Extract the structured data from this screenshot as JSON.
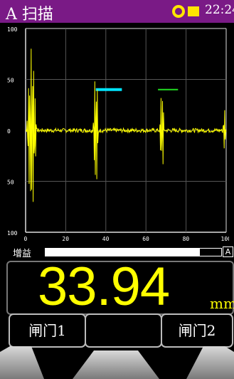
{
  "header": {
    "title": "A 扫描",
    "time": "22:24",
    "status_icons": [
      "ring-indicator",
      "battery"
    ],
    "bar_color": "#7a1a86",
    "indicator_color": "#ffe600"
  },
  "scope": {
    "y_ticks": [
      "100",
      "50",
      "0",
      "50",
      "100"
    ],
    "x_ticks": [
      "0",
      "20",
      "40",
      "60",
      "80",
      "100"
    ],
    "trace_color": "#ffff00",
    "gate_colors": [
      "#00e5ff",
      "#22dd22"
    ],
    "gates": [
      {
        "start": 35,
        "end": 48,
        "level": 40
      },
      {
        "start": 66,
        "end": 76,
        "level": 40
      }
    ],
    "echoes": [
      {
        "x": 3,
        "amp": 80,
        "span": 2.5
      },
      {
        "x": 35,
        "amp": 58,
        "span": 1.5
      },
      {
        "x": 68,
        "amp": 40,
        "span": 1.2
      },
      {
        "x": 99,
        "amp": 22,
        "span": 0.8
      }
    ]
  },
  "gain": {
    "label": "增益",
    "level_pct": 88,
    "mode": "A"
  },
  "readout": {
    "value": "33.94",
    "unit": "mm",
    "color": "#ffff00"
  },
  "softkeys": {
    "gate1": "闸门1",
    "middle": "",
    "gate2": "闸门2"
  }
}
